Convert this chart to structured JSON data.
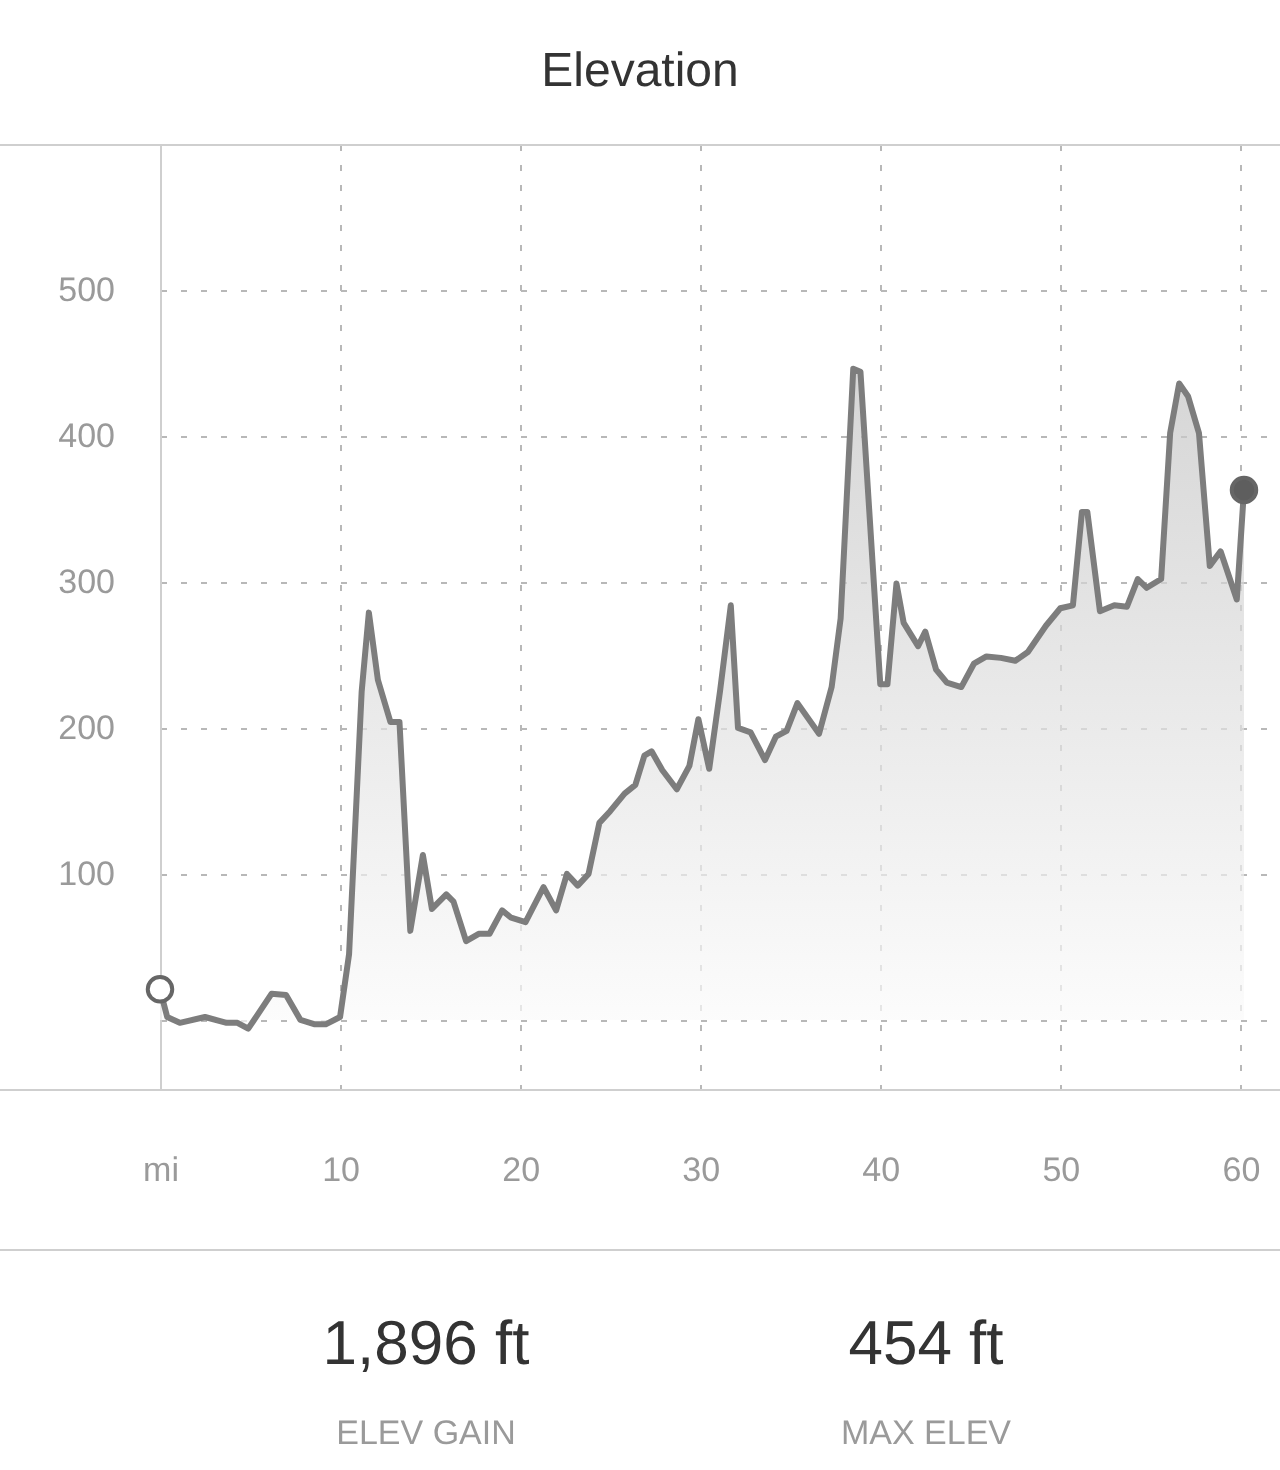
{
  "chart_data": {
    "type": "area",
    "title": "Elevation",
    "x": [
      0,
      0.4,
      1.1,
      2.5,
      3.7,
      4.3,
      4.9,
      6.2,
      7.0,
      7.8,
      8.6,
      9.2,
      10.0,
      10.5,
      11.2,
      11.6,
      12.1,
      12.8,
      13.3,
      13.9,
      14.6,
      15.1,
      15.9,
      16.3,
      17.0,
      17.7,
      18.3,
      19.0,
      19.5,
      20.3,
      21.3,
      22.0,
      22.6,
      23.2,
      23.8,
      24.4,
      25.0,
      25.8,
      26.4,
      26.9,
      27.3,
      27.9,
      28.7,
      29.4,
      29.9,
      30.5,
      31.1,
      31.7,
      32.1,
      32.8,
      33.6,
      34.2,
      34.8,
      35.4,
      36.6,
      37.3,
      37.8,
      38.5,
      38.9,
      40.0,
      40.4,
      40.9,
      41.3,
      42.1,
      42.5,
      43.1,
      43.7,
      44.5,
      45.2,
      45.9,
      46.7,
      47.5,
      48.2,
      49.2,
      50.0,
      50.7,
      51.2,
      51.5,
      52.2,
      53.0,
      53.7,
      54.3,
      54.8,
      55.6,
      56.1,
      56.6,
      57.1,
      57.7,
      58.3,
      58.9,
      59.8,
      60.2
    ],
    "series": [
      {
        "color": "#7d7d7d",
        "values": [
          21,
          2,
          -2,
          2,
          -2,
          -2,
          -6,
          18,
          17,
          0,
          -3,
          -3,
          2,
          45,
          225,
          279,
          233,
          204,
          204,
          61,
          113,
          76,
          86,
          81,
          54,
          59,
          59,
          75,
          70,
          67,
          91,
          75,
          100,
          92,
          100,
          135,
          143,
          155,
          161,
          181,
          184,
          171,
          158,
          174,
          206,
          172,
          225,
          284,
          200,
          197,
          178,
          194,
          198,
          217,
          196,
          228,
          275,
          446,
          444,
          230,
          230,
          299,
          272,
          256,
          266,
          240,
          231,
          228,
          244,
          249,
          248,
          246,
          252,
          270,
          282,
          284,
          348,
          348,
          280,
          284,
          283,
          302,
          296,
          302,
          402,
          436,
          427,
          402,
          311,
          321,
          288,
          363
        ]
      },
      {
        "type": "scatter",
        "x": [
          0,
          60.2
        ],
        "values": [
          21,
          363
        ],
        "colors": [
          "#ffffff",
          "#5e5e5e"
        ],
        "marker": "circle"
      }
    ],
    "xlim": [
      0,
      62.2
    ],
    "ylim": [
      -48,
      600
    ],
    "xticks": [
      {
        "value": 0,
        "label": "mi"
      },
      10,
      20,
      30,
      40,
      50,
      60
    ],
    "yticks": [
      {
        "value": 0,
        "label": null
      },
      100,
      200,
      300,
      400,
      500
    ],
    "grid": true,
    "annotations": [
      "1,896 ft",
      "ELEV GAIN",
      "454 ft",
      "MAX ELEV"
    ]
  }
}
